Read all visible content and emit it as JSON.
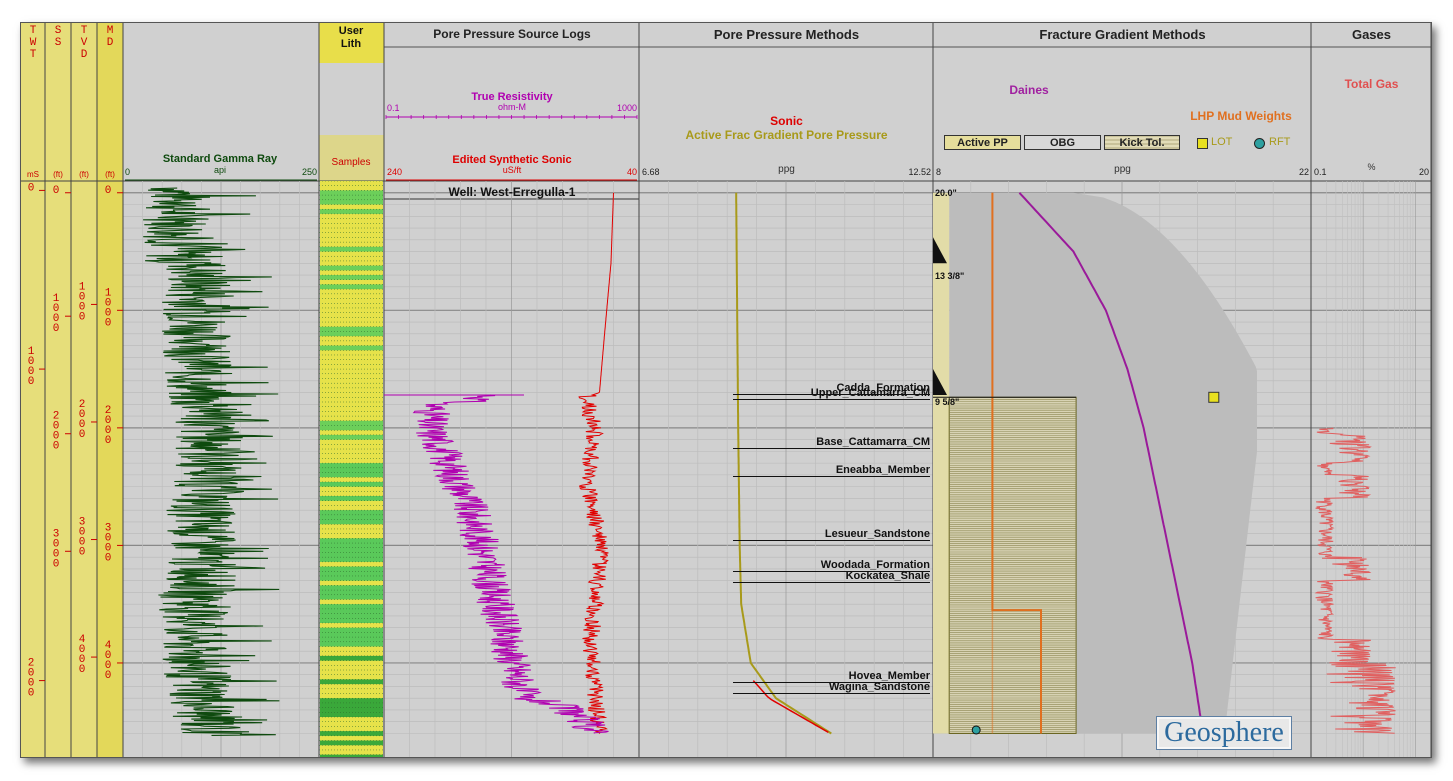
{
  "panels": {
    "twt": "TWT",
    "ss": "SS",
    "tvd": "TVD",
    "md": "MD",
    "user_lith": "User\nLith",
    "samples": "Samples",
    "pp_source": "Pore Pressure Source Logs",
    "pp_methods": "Pore Pressure Methods",
    "fg_methods": "Fracture Gradient Methods",
    "gases": "Gases"
  },
  "depth_units": {
    "twt": "mS",
    "ss": "(ft)",
    "tvd": "(ft)",
    "md": "(ft)"
  },
  "depth_ticks": {
    "twt": [
      "0",
      "1000",
      "2000"
    ],
    "ss": [
      "0",
      "1000",
      "2000",
      "3000"
    ],
    "tvd": [
      "1000",
      "2000",
      "3000",
      "4000"
    ],
    "md": [
      "0",
      "1000",
      "2000",
      "3000",
      "4000"
    ]
  },
  "gamma_header": {
    "name": "Standard Gamma Ray",
    "unit": "api",
    "min": "0",
    "max": "250"
  },
  "resistivity_header": {
    "name": "True Resistivity",
    "unit": "ohm-M",
    "min": "0.1",
    "max": "1000"
  },
  "sonic_header": {
    "name": "Edited Synthetic Sonic",
    "unit": "uS/ft",
    "min": "240",
    "max": "40"
  },
  "well_name": "Well: West-Erregulla-1",
  "pp_methods_header": {
    "sonic": "Sonic",
    "active_frac": "Active Frac Gradient Pore Pressure",
    "unit": "ppg",
    "min": "6.68",
    "max": "12.52"
  },
  "fg_header": {
    "daines": "Daines",
    "mud_weights": "LHP Mud Weights",
    "unit": "ppg",
    "min": "8",
    "max": "22"
  },
  "buttons": {
    "active_pp": "Active PP",
    "obg": "OBG",
    "kick_tol": "Kick Tol."
  },
  "legend": {
    "lot": "LOT",
    "rft": "RFT"
  },
  "gas_header": {
    "name": "Total Gas",
    "unit": "%",
    "min": "0.1",
    "max": "20"
  },
  "casing": [
    "20.0\"",
    "13 3/8\"",
    "9 5/8\""
  ],
  "formations": [
    "Cadda_Formation",
    "Upper_Cattamarra_CM",
    "Base_Cattamarra_CM",
    "Eneabba_Member",
    "Lesueur_Sandstone",
    "Woodada_Formation",
    "Kockatea_Shale",
    "Hovea_Member",
    "Wagina_Sandstone"
  ],
  "logo": "Geosphere",
  "colors": {
    "gamma": "#0e4a0e",
    "resistivity": "#b000b0",
    "sonic": "#e00000",
    "pp_line": "#a89a1a",
    "daines": "#9a1a9a",
    "mud": "#e07020",
    "depth_text": "#cc0000",
    "depth_bg": "#e6de7a"
  },
  "chart_data": {
    "type": "line",
    "depth_axis": "MD (ft)",
    "depth_range": [
      -100,
      4800
    ],
    "series": [
      {
        "name": "Edited Synthetic Sonic",
        "unit": "uS/ft",
        "xlim": [
          240,
          40
        ],
        "points": [
          [
            0,
            60
          ],
          [
            600,
            62
          ],
          [
            1200,
            67
          ],
          [
            1700,
            71
          ],
          [
            1740,
            82
          ],
          [
            2000,
            75
          ],
          [
            2500,
            80
          ],
          [
            3000,
            70
          ],
          [
            3800,
            78
          ],
          [
            4600,
            72
          ]
        ]
      },
      {
        "name": "True Resistivity",
        "unit": "ohm-M",
        "xlim": [
          0.1,
          1000
        ],
        "points": [
          [
            1720,
            5
          ],
          [
            1800,
            0.6
          ],
          [
            2000,
            0.5
          ],
          [
            2400,
            1.2
          ],
          [
            2900,
            3
          ],
          [
            3400,
            5
          ],
          [
            3800,
            8
          ],
          [
            4300,
            15
          ],
          [
            4600,
            200
          ]
        ]
      },
      {
        "name": "Active Frac Gradient Pore Pressure",
        "unit": "ppg",
        "xlim": [
          6.68,
          12.52
        ],
        "points": [
          [
            0,
            8.61
          ],
          [
            1000,
            8.63
          ],
          [
            2000,
            8.65
          ],
          [
            3000,
            8.68
          ],
          [
            3500,
            8.71
          ],
          [
            4000,
            8.9
          ],
          [
            4300,
            9.4
          ],
          [
            4600,
            10.5
          ]
        ]
      },
      {
        "name": "Daines",
        "unit": "ppg",
        "xlim": [
          8,
          22
        ],
        "points": [
          [
            0,
            11.2
          ],
          [
            500,
            13.2
          ],
          [
            1000,
            14.4
          ],
          [
            1500,
            15.2
          ],
          [
            2000,
            15.8
          ],
          [
            3000,
            16.7
          ],
          [
            4000,
            17.6
          ],
          [
            4600,
            18.0
          ]
        ]
      },
      {
        "name": "LHP Mud Weights",
        "unit": "ppg",
        "xlim": [
          8,
          22
        ],
        "points": [
          [
            0,
            10.2
          ],
          [
            3550,
            10.2
          ],
          [
            3550,
            12.0
          ],
          [
            4600,
            12.0
          ]
        ]
      }
    ],
    "lot": [
      {
        "md": 1740,
        "ppg": 18.4
      }
    ],
    "rft": [
      {
        "md": 4570,
        "ppg": 9.6
      }
    ]
  }
}
